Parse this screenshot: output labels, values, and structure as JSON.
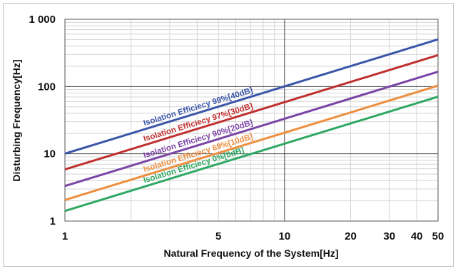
{
  "chart_data": {
    "type": "line",
    "xscale": "log",
    "yscale": "log",
    "xlim": [
      1,
      50
    ],
    "ylim": [
      1,
      1000
    ],
    "xlabel": "Natural Frequency of the System[Hz]",
    "ylabel": "Disturbing Frequency[Hz]",
    "x_ticks": [
      {
        "value": 1,
        "label": "1"
      },
      {
        "value": 5,
        "label": "5"
      },
      {
        "value": 10,
        "label": "10"
      },
      {
        "value": 20,
        "label": "20"
      },
      {
        "value": 30,
        "label": "30"
      },
      {
        "value": 40,
        "label": "40"
      },
      {
        "value": 50,
        "label": "50"
      }
    ],
    "y_ticks": [
      {
        "value": 1,
        "label": "1"
      },
      {
        "value": 10,
        "label": "10"
      },
      {
        "value": 100,
        "label": "100"
      },
      {
        "value": 1000,
        "label": "1 000"
      }
    ],
    "grid": true,
    "series": [
      {
        "name": "Isolation Efficiecy 99%[40dB]",
        "color": "#3a56a8",
        "x": [
          1,
          50
        ],
        "y": [
          10.05,
          502.5
        ],
        "label_x": 2.3
      },
      {
        "name": "Isolation Efficiecy 97%[30dB]",
        "color": "#c0302f",
        "x": [
          1,
          50
        ],
        "y": [
          5.86,
          293
        ],
        "label_x": 2.3
      },
      {
        "name": "Isolation Efficiecy 90%[20dB]",
        "color": "#7b45a6",
        "x": [
          1,
          50
        ],
        "y": [
          3.32,
          166
        ],
        "label_x": 2.3
      },
      {
        "name": "Isolation Efficiecy 69%[10dB]",
        "color": "#ee8e3f",
        "x": [
          1,
          50
        ],
        "y": [
          2.06,
          103
        ],
        "label_x": 2.3
      },
      {
        "name": "Isolation Efficiecy 0%[0dB]",
        "color": "#2ea862",
        "x": [
          1,
          50
        ],
        "y": [
          1.414,
          70.7
        ],
        "label_x": 2.3
      }
    ]
  }
}
